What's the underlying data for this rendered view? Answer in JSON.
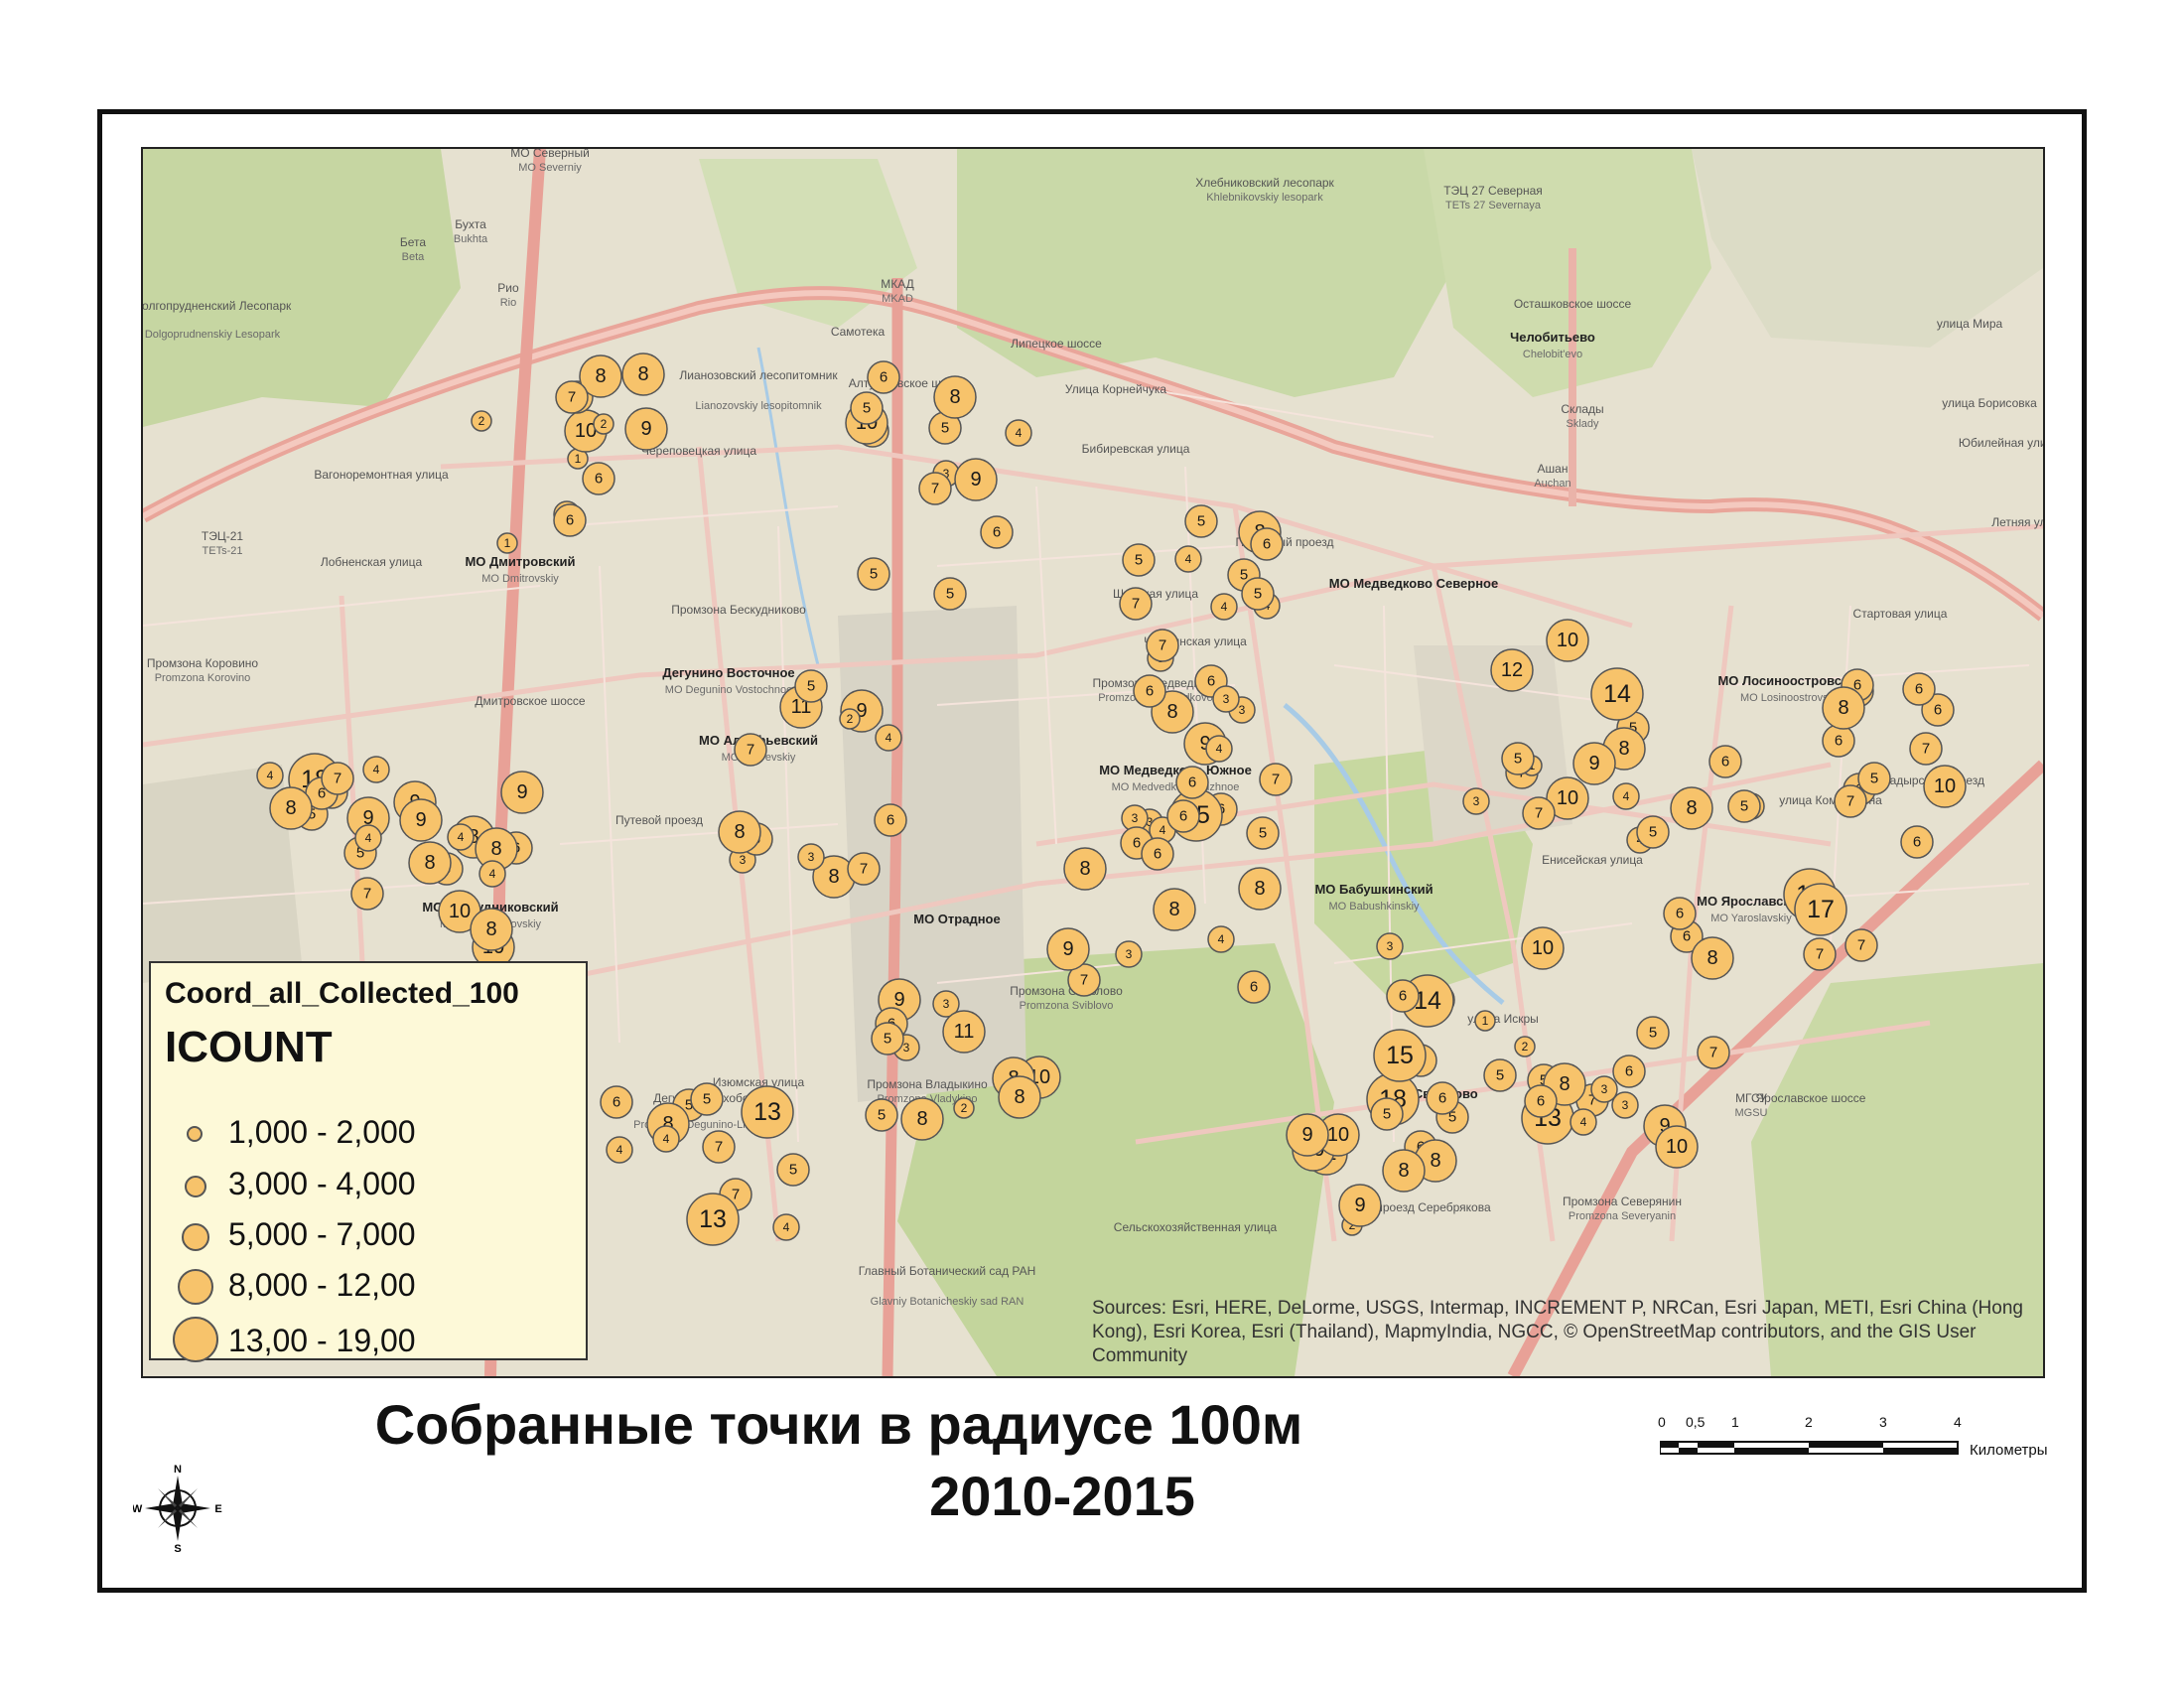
{
  "map": {
    "layer_name": "Coord_all_Collected_100",
    "field_name": "ICOUNT",
    "attribution": "Sources: Esri, HERE, DeLorme, USGS, Intermap, INCREMENT P, NRCan, Esri Japan, METI, Esri China (Hong Kong), Esri Korea, Esri (Thailand), MapmyIndia, NGCC, © OpenStreetMap contributors, and the GIS User Community",
    "point_fill": "#f7c36b",
    "point_stroke": "#555555",
    "labels": [
      {
        "t": "МО Дмитровский",
        "c": "b"
      },
      {
        "t": "MO Dmitrovskiy",
        "c": "s"
      },
      {
        "t": "МО Алтуфьевский",
        "c": "b"
      },
      {
        "t": "MO Altuf'evskiy",
        "c": "s"
      },
      {
        "t": "Дегунино Восточное",
        "c": "b"
      },
      {
        "t": "MO Degunino Vostochnoe",
        "c": "s"
      },
      {
        "t": "МО Медведково Северное",
        "c": "b"
      },
      {
        "t": "МО Медведково Южное",
        "c": "b"
      },
      {
        "t": "MO Medvedkovo Yuzhnoe",
        "c": "s"
      },
      {
        "t": "МО Бабушкинский",
        "c": "b"
      },
      {
        "t": "MO Babushkinskiy",
        "c": "s"
      },
      {
        "t": "МО Свиблово",
        "c": "b"
      },
      {
        "t": "МО Лосиноостровский",
        "c": "b"
      },
      {
        "t": "MO Losinoostrovskiy",
        "c": "s"
      },
      {
        "t": "МО Ярославский",
        "c": "b"
      },
      {
        "t": "MO Yaroslavskiy",
        "c": "s"
      },
      {
        "t": "МО Бескудниковский",
        "c": "b"
      },
      {
        "t": "MO Beskudnikovskiy",
        "c": "s"
      },
      {
        "t": "МО Отрадное",
        "c": "b"
      },
      {
        "t": "МО Северный",
        "c": "l"
      },
      {
        "t": "MO Severniy",
        "c": "s"
      },
      {
        "t": "Челобитьево",
        "c": "b"
      },
      {
        "t": "Chelobit'evo",
        "c": "s"
      },
      {
        "t": "Хлебниковский лесопарк",
        "c": "l"
      },
      {
        "t": "Khlebnikovskiy lesopark",
        "c": "s"
      },
      {
        "t": "ТЭЦ 27 Северная",
        "c": "l"
      },
      {
        "t": "TETs 27 Severnaya",
        "c": "s"
      },
      {
        "t": "Долгопрудненский Лесопарк",
        "c": "l"
      },
      {
        "t": "Dolgoprudnenskiy Lesopark",
        "c": "s"
      },
      {
        "t": "ТЭЦ-21",
        "c": "l"
      },
      {
        "t": "TETs-21",
        "c": "s"
      },
      {
        "t": "Лианозовский лесопитомник",
        "c": "l"
      },
      {
        "t": "Lianozovskiy lesopitomnik",
        "c": "s"
      },
      {
        "t": "Промзона Бескудниково",
        "c": "l"
      },
      {
        "t": "Промзона Медведково",
        "c": "l"
      },
      {
        "t": "Promzona Medvedkovo",
        "c": "s"
      },
      {
        "t": "Промзона Коровино",
        "c": "l"
      },
      {
        "t": "Promzona Korovino",
        "c": "s"
      },
      {
        "t": "Промзона Владыкино",
        "c": "l"
      },
      {
        "t": "Promzona Vladykino",
        "c": "s"
      },
      {
        "t": "Промзона Свиблово",
        "c": "l"
      },
      {
        "t": "Promzona Sviblovo",
        "c": "s"
      },
      {
        "t": "Промзона Северянин",
        "c": "l"
      },
      {
        "t": "Promzona Severyanin",
        "c": "s"
      },
      {
        "t": "Дегунино-Лихоборы",
        "c": "l"
      },
      {
        "t": "Promzona Degunino-Likhobory",
        "c": "s"
      },
      {
        "t": "Главный Ботанический сад РАН",
        "c": "l"
      },
      {
        "t": "Glavniy Botanicheskiy sad RAN",
        "c": "s"
      },
      {
        "t": "МГСУ",
        "c": "l"
      },
      {
        "t": "MGSU",
        "c": "s"
      },
      {
        "t": "Склады",
        "c": "l"
      },
      {
        "t": "Sklady",
        "c": "s"
      },
      {
        "t": "Ашан",
        "c": "l"
      },
      {
        "t": "Auchan",
        "c": "s"
      },
      {
        "t": "Бухта",
        "c": "l"
      },
      {
        "t": "Bukhta",
        "c": "s"
      },
      {
        "t": "Бета",
        "c": "l"
      },
      {
        "t": "Beta",
        "c": "s"
      },
      {
        "t": "Рио",
        "c": "l"
      },
      {
        "t": "Rio",
        "c": "s"
      },
      {
        "t": "Самотека",
        "c": "l"
      },
      {
        "t": "МКАД",
        "c": "l"
      },
      {
        "t": "MKAD",
        "c": "s"
      },
      {
        "t": "Алтуфьевское шоссе",
        "c": "l"
      },
      {
        "t": "Дмитровское шоссе",
        "c": "l"
      },
      {
        "t": "Ярославское шоссе",
        "c": "l"
      },
      {
        "t": "Осташковское шоссе",
        "c": "l"
      },
      {
        "t": "Полярный проезд",
        "c": "l"
      },
      {
        "t": "Широкая улица",
        "c": "l"
      },
      {
        "t": "Чермянская улица",
        "c": "l"
      },
      {
        "t": "Череповецкая улица",
        "c": "l"
      },
      {
        "t": "Вагоноремонтная улица",
        "c": "l"
      },
      {
        "t": "Лобненская улица",
        "c": "l"
      },
      {
        "t": "Путевой проезд",
        "c": "l"
      },
      {
        "t": "Бибиревская улица",
        "c": "l"
      },
      {
        "t": "Улица Корнейчука",
        "c": "l"
      },
      {
        "t": "Липецкое шоссе",
        "c": "l"
      },
      {
        "t": "Сельскохозяйственная улица",
        "c": "l"
      },
      {
        "t": "проезд Серебрякова",
        "c": "l"
      },
      {
        "t": "улица Искры",
        "c": "l"
      },
      {
        "t": "Енисейская улица",
        "c": "l"
      },
      {
        "t": "улица Коминтерна",
        "c": "l"
      },
      {
        "t": "Анадырский проезд",
        "c": "l"
      },
      {
        "t": "Стартовая улица",
        "c": "l"
      },
      {
        "t": "Летняя улица",
        "c": "l"
      },
      {
        "t": "Юбилейная улица",
        "c": "l"
      },
      {
        "t": "улица Борисовка",
        "c": "l"
      },
      {
        "t": "улица Мира",
        "c": "l"
      },
      {
        "t": "Изюмская улица",
        "c": "l"
      }
    ],
    "points": [
      {
        "n": 1
      },
      {
        "n": 7
      },
      {
        "n": 4
      },
      {
        "n": 3
      },
      {
        "n": 6
      },
      {
        "n": 3
      },
      {
        "n": 10
      },
      {
        "n": 4
      },
      {
        "n": 6
      },
      {
        "n": 1
      },
      {
        "n": 9
      },
      {
        "n": 4
      },
      {
        "n": 11
      },
      {
        "n": 7
      },
      {
        "n": 5
      },
      {
        "n": 3
      },
      {
        "n": 1
      },
      {
        "n": 5
      },
      {
        "n": 5
      },
      {
        "n": 6
      },
      {
        "n": 8
      },
      {
        "n": 7
      },
      {
        "n": 3
      },
      {
        "n": 5
      },
      {
        "n": 7
      },
      {
        "n": 2
      },
      {
        "n": 6
      },
      {
        "n": 5
      },
      {
        "n": 10
      },
      {
        "n": 9
      },
      {
        "n": 4
      },
      {
        "n": 9
      },
      {
        "n": 3
      },
      {
        "n": 3
      },
      {
        "n": 4
      },
      {
        "n": 9
      },
      {
        "n": 10
      },
      {
        "n": 6
      },
      {
        "n": 4
      },
      {
        "n": 16
      },
      {
        "n": 6
      },
      {
        "n": 5
      },
      {
        "n": 3
      },
      {
        "n": 7
      },
      {
        "n": 2
      },
      {
        "n": 5
      },
      {
        "n": 6
      },
      {
        "n": 3
      },
      {
        "n": 6
      },
      {
        "n": 9
      },
      {
        "n": 3
      },
      {
        "n": 4
      },
      {
        "n": 9
      },
      {
        "n": 4
      },
      {
        "n": 10
      },
      {
        "n": 6
      },
      {
        "n": 6
      },
      {
        "n": 3
      },
      {
        "n": 2
      },
      {
        "n": 13
      },
      {
        "n": 18
      },
      {
        "n": 7
      },
      {
        "n": 4
      },
      {
        "n": 8
      },
      {
        "n": 8
      },
      {
        "n": 6
      },
      {
        "n": 8
      },
      {
        "n": 11
      },
      {
        "n": 8
      },
      {
        "n": 9
      },
      {
        "n": 7
      },
      {
        "n": 8
      },
      {
        "n": 10
      },
      {
        "n": 14
      },
      {
        "n": 5
      },
      {
        "n": 6
      },
      {
        "n": 10
      },
      {
        "n": 13
      },
      {
        "n": 18
      },
      {
        "n": 6
      },
      {
        "n": 10
      },
      {
        "n": 5
      },
      {
        "n": 4
      },
      {
        "n": 6
      },
      {
        "n": 10
      },
      {
        "n": 8
      },
      {
        "n": 1
      },
      {
        "n": 7
      },
      {
        "n": 6
      },
      {
        "n": 5
      },
      {
        "n": 3
      },
      {
        "n": 5
      },
      {
        "n": 6
      },
      {
        "n": 10
      },
      {
        "n": 6
      },
      {
        "n": 7
      },
      {
        "n": 2
      },
      {
        "n": 5
      },
      {
        "n": 6
      },
      {
        "n": 2
      },
      {
        "n": 6
      },
      {
        "n": 3
      },
      {
        "n": 5
      },
      {
        "n": 4
      },
      {
        "n": 6
      },
      {
        "n": 7
      },
      {
        "n": 8
      },
      {
        "n": 7
      },
      {
        "n": 5
      },
      {
        "n": 3
      },
      {
        "n": 9
      },
      {
        "n": 6
      },
      {
        "n": 6
      },
      {
        "n": 7
      },
      {
        "n": 5
      },
      {
        "n": 8
      },
      {
        "n": 4
      },
      {
        "n": 5
      },
      {
        "n": 12
      },
      {
        "n": 6
      },
      {
        "n": 7
      },
      {
        "n": 10
      },
      {
        "n": 11
      },
      {
        "n": 8
      },
      {
        "n": 8
      },
      {
        "n": 4
      },
      {
        "n": 7
      },
      {
        "n": 15
      },
      {
        "n": 9
      },
      {
        "n": 10
      },
      {
        "n": 7
      },
      {
        "n": 8
      },
      {
        "n": 4
      },
      {
        "n": 6
      },
      {
        "n": 8
      },
      {
        "n": 17
      },
      {
        "n": 5
      },
      {
        "n": 15
      },
      {
        "n": 10
      },
      {
        "n": 4
      },
      {
        "n": 8
      },
      {
        "n": 8
      },
      {
        "n": 5
      },
      {
        "n": 4
      },
      {
        "n": 2
      },
      {
        "n": 5
      },
      {
        "n": 6
      },
      {
        "n": 7
      },
      {
        "n": 8
      },
      {
        "n": 4
      },
      {
        "n": 14
      },
      {
        "n": 8
      },
      {
        "n": 6
      },
      {
        "n": 6
      },
      {
        "n": 8
      },
      {
        "n": 5
      },
      {
        "n": 5
      },
      {
        "n": 6
      },
      {
        "n": 8
      },
      {
        "n": 3
      },
      {
        "n": 6
      },
      {
        "n": 8
      },
      {
        "n": 7
      },
      {
        "n": 5
      },
      {
        "n": 9
      },
      {
        "n": 8
      },
      {
        "n": 5
      },
      {
        "n": 7
      },
      {
        "n": 6
      },
      {
        "n": 6
      },
      {
        "n": 8
      },
      {
        "n": 13
      },
      {
        "n": 9
      },
      {
        "n": 5
      },
      {
        "n": 7
      },
      {
        "n": 6
      },
      {
        "n": 8
      },
      {
        "n": 6
      },
      {
        "n": 5
      },
      {
        "n": 7
      },
      {
        "n": 9
      },
      {
        "n": 8
      },
      {
        "n": 7
      },
      {
        "n": 5
      },
      {
        "n": 8
      },
      {
        "n": 6
      },
      {
        "n": 5
      },
      {
        "n": 4
      },
      {
        "n": 9
      },
      {
        "n": 3
      },
      {
        "n": 4
      },
      {
        "n": 6
      },
      {
        "n": 7
      },
      {
        "n": 4
      },
      {
        "n": 5
      },
      {
        "n": 3
      },
      {
        "n": 8
      },
      {
        "n": 6
      },
      {
        "n": 9
      },
      {
        "n": 6
      }
    ]
  },
  "legend": {
    "title": "Coord_all_Collected_100",
    "field": "ICOUNT",
    "classes": [
      {
        "label": "1,000 - 2,000"
      },
      {
        "label": "3,000 - 4,000"
      },
      {
        "label": "5,000 - 7,000"
      },
      {
        "label": "8,000 - 12,00"
      },
      {
        "label": "13,00 - 19,00"
      }
    ]
  },
  "title": {
    "line1": "Собранные точки в радиусе 100м",
    "line2": "2010-2015"
  },
  "scale": {
    "ticks": [
      "0",
      "0,5",
      "1",
      "2",
      "3",
      "4"
    ],
    "unit": "Километры"
  },
  "compass": {
    "n": "N",
    "s": "S",
    "e": "E",
    "w": "W"
  }
}
